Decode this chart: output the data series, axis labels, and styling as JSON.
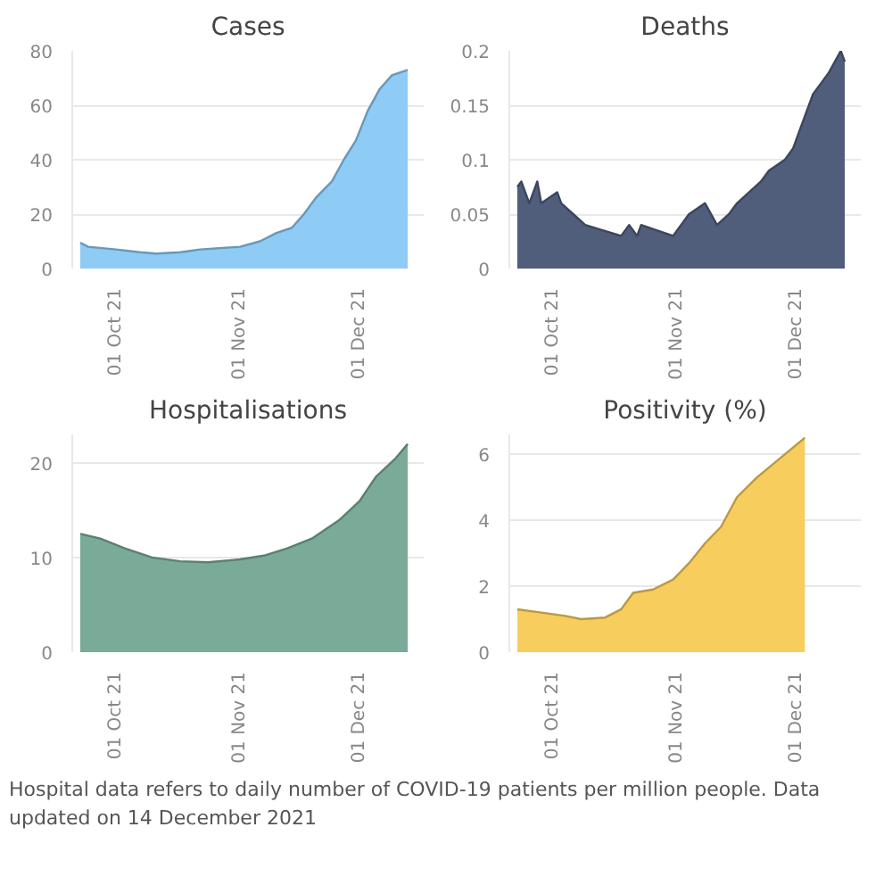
{
  "chart_data": [
    {
      "type": "area",
      "title": "Cases",
      "x": [
        "2021-09-22",
        "2021-09-24",
        "2021-10-01",
        "2021-10-07",
        "2021-10-11",
        "2021-10-17",
        "2021-10-22",
        "2021-11-01",
        "2021-11-06",
        "2021-11-10",
        "2021-11-14",
        "2021-11-17",
        "2021-11-20",
        "2021-11-24",
        "2021-11-27",
        "2021-11-30",
        "2021-12-03",
        "2021-12-06",
        "2021-12-09",
        "2021-12-13"
      ],
      "series": [
        {
          "color": "#8ecbf5",
          "values": [
            9.5,
            8,
            7,
            6,
            5.5,
            6,
            7,
            8,
            10,
            13,
            15,
            20,
            26,
            32,
            40,
            47,
            58,
            66,
            71,
            73
          ]
        }
      ],
      "xlim": [
        "2021-09-20",
        "2021-12-17"
      ],
      "ylim": [
        0,
        80
      ],
      "yticks": [
        0,
        20,
        40,
        60,
        80
      ],
      "xticks": [
        {
          "value": "2021-10-01",
          "label": "01 Oct 21"
        },
        {
          "value": "2021-11-01",
          "label": "01 Nov 21"
        },
        {
          "value": "2021-12-01",
          "label": "01 Dec 21"
        }
      ],
      "grid": "y"
    },
    {
      "type": "area",
      "title": "Deaths",
      "x": [
        "2021-09-22",
        "2021-09-23",
        "2021-09-25",
        "2021-09-27",
        "2021-09-28",
        "2021-10-02",
        "2021-10-03",
        "2021-10-06",
        "2021-10-09",
        "2021-10-18",
        "2021-10-20",
        "2021-10-22",
        "2021-10-23",
        "2021-10-31",
        "2021-11-02",
        "2021-11-04",
        "2021-11-08",
        "2021-11-11",
        "2021-11-14",
        "2021-11-16",
        "2021-11-19",
        "2021-11-22",
        "2021-11-24",
        "2021-11-28",
        "2021-11-30",
        "2021-12-02",
        "2021-12-05",
        "2021-12-07",
        "2021-12-09",
        "2021-12-12",
        "2021-12-13"
      ],
      "series": [
        {
          "color": "#505e7c",
          "values": [
            0.075,
            0.08,
            0.06,
            0.08,
            0.06,
            0.07,
            0.06,
            0.05,
            0.04,
            0.03,
            0.04,
            0.03,
            0.04,
            0.03,
            0.04,
            0.05,
            0.06,
            0.04,
            0.05,
            0.06,
            0.07,
            0.08,
            0.09,
            0.1,
            0.11,
            0.13,
            0.16,
            0.17,
            0.18,
            0.2,
            0.19
          ]
        }
      ],
      "xlim": [
        "2021-09-20",
        "2021-12-17"
      ],
      "ylim": [
        0,
        0.2
      ],
      "yticks": [
        {
          "value": 0,
          "label": "0"
        },
        0.05,
        0.1,
        0.15,
        0.2
      ],
      "xticks": [
        {
          "value": "2021-10-01",
          "label": "01 Oct 21"
        },
        {
          "value": "2021-11-01",
          "label": "01 Nov 21"
        },
        {
          "value": "2021-12-01",
          "label": "01 Dec 21"
        }
      ],
      "grid": "y"
    },
    {
      "type": "area",
      "title": "Hospitalisations",
      "x": [
        "2021-09-22",
        "2021-09-27",
        "2021-10-03",
        "2021-10-10",
        "2021-10-17",
        "2021-10-24",
        "2021-11-01",
        "2021-11-07",
        "2021-11-13",
        "2021-11-19",
        "2021-11-26",
        "2021-12-01",
        "2021-12-05",
        "2021-12-10",
        "2021-12-13"
      ],
      "series": [
        {
          "color": "#7aab98",
          "values": [
            12.5,
            12,
            11,
            10,
            9.6,
            9.5,
            9.8,
            10.2,
            11,
            12,
            14,
            16,
            18.5,
            20.5,
            22
          ]
        }
      ],
      "xlim": [
        "2021-09-20",
        "2021-12-17"
      ],
      "ylim": [
        0,
        23
      ],
      "yticks": [
        0,
        10,
        20
      ],
      "xticks": [
        {
          "value": "2021-10-01",
          "label": "01 Oct 21"
        },
        {
          "value": "2021-11-01",
          "label": "01 Nov 21"
        },
        {
          "value": "2021-12-01",
          "label": "01 Dec 21"
        }
      ],
      "grid": "y",
      "annotations": [
        "Hospital data refers to daily number of COVID-19 patients per million people. Data updated on 14 December 2021"
      ]
    },
    {
      "type": "area",
      "title": "Positivity (%)",
      "x": [
        "2021-09-22",
        "2021-09-28",
        "2021-10-04",
        "2021-10-08",
        "2021-10-14",
        "2021-10-18",
        "2021-10-21",
        "2021-10-26",
        "2021-10-31",
        "2021-11-04",
        "2021-11-08",
        "2021-11-12",
        "2021-11-16",
        "2021-11-21",
        "2021-11-27",
        "2021-12-03"
      ],
      "series": [
        {
          "color": "#f7cd5e",
          "values": [
            1.3,
            1.2,
            1.1,
            1.0,
            1.05,
            1.3,
            1.8,
            1.9,
            2.2,
            2.7,
            3.3,
            3.8,
            4.7,
            5.3,
            5.9,
            6.5
          ]
        }
      ],
      "xlim": [
        "2021-09-20",
        "2021-12-17"
      ],
      "ylim": [
        0,
        6.6
      ],
      "yticks": [
        0,
        2,
        4,
        6
      ],
      "xticks": [
        {
          "value": "2021-10-01",
          "label": "01 Oct 21"
        },
        {
          "value": "2021-11-01",
          "label": "01 Nov 21"
        },
        {
          "value": "2021-12-01",
          "label": "01 Dec 21"
        }
      ],
      "grid": "y"
    }
  ]
}
